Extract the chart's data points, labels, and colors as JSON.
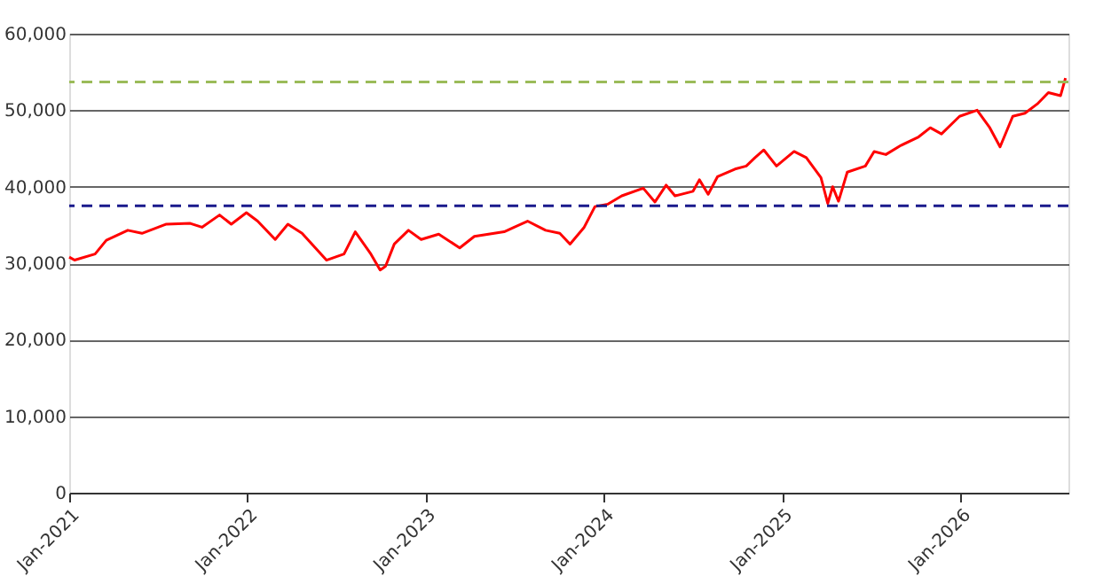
{
  "chart_data": {
    "type": "line",
    "x": [
      "2021-01-01",
      "2021-01-12",
      "2021-02-23",
      "2021-03-18",
      "2021-05-01",
      "2021-05-30",
      "2021-07-19",
      "2021-09-06",
      "2021-09-30",
      "2021-11-05",
      "2021-11-29",
      "2021-12-30",
      "2022-01-22",
      "2022-02-27",
      "2022-03-25",
      "2022-04-23",
      "2022-06-12",
      "2022-07-18",
      "2022-08-10",
      "2022-09-11",
      "2022-09-30",
      "2022-10-11",
      "2022-10-29",
      "2022-11-27",
      "2022-12-23",
      "2023-01-28",
      "2023-03-12",
      "2023-04-11",
      "2023-06-11",
      "2023-07-29",
      "2023-09-04",
      "2023-10-03",
      "2023-10-24",
      "2023-11-22",
      "2023-12-14",
      "2024-01-09",
      "2024-02-07",
      "2024-03-22",
      "2024-04-15",
      "2024-05-08",
      "2024-05-26",
      "2024-07-02",
      "2024-07-15",
      "2024-08-02",
      "2024-08-21",
      "2024-09-26",
      "2024-10-19",
      "2024-11-06",
      "2024-11-24",
      "2024-12-20",
      "2025-01-25",
      "2025-02-19",
      "2025-03-21",
      "2025-04-04",
      "2025-04-14",
      "2025-04-26",
      "2025-05-14",
      "2025-06-20",
      "2025-07-08",
      "2025-08-01",
      "2025-09-01",
      "2025-10-07",
      "2025-10-31",
      "2025-11-23",
      "2025-12-30",
      "2026-02-04",
      "2026-03-02",
      "2026-03-23",
      "2026-04-18",
      "2026-05-13",
      "2026-06-07",
      "2026-06-30",
      "2026-07-25",
      "2026-08-04"
    ],
    "series": [
      {
        "color": "#ff0000",
        "values": [
          30800,
          30400,
          31200,
          33000,
          34300,
          33900,
          35100,
          35200,
          34700,
          36300,
          35100,
          36600,
          35500,
          33100,
          35100,
          33900,
          30400,
          31200,
          34100,
          31200,
          29100,
          29600,
          32500,
          34300,
          33100,
          33800,
          32000,
          33500,
          34100,
          35500,
          34300,
          33900,
          32500,
          34700,
          37400,
          37700,
          38800,
          39800,
          38000,
          40200,
          38800,
          39400,
          40900,
          39000,
          41300,
          42300,
          42700,
          43800,
          44800,
          42700,
          44600,
          43800,
          41200,
          37800,
          40000,
          38100,
          41900,
          42700,
          44600,
          44200,
          45400,
          46500,
          47700,
          46900,
          49200,
          50000,
          47700,
          45200,
          49200,
          49600,
          50800,
          52300,
          51900,
          54200
        ]
      }
    ],
    "xlim": [
      "2021-01-01",
      "2026-08-10"
    ],
    "xticks": [
      {
        "value": "2021-01-01",
        "label": "Jan-2021"
      },
      {
        "value": "2022-01-01",
        "label": "Jan-2022"
      },
      {
        "value": "2023-01-01",
        "label": "Jan-2023"
      },
      {
        "value": "2024-01-01",
        "label": "Jan-2024"
      },
      {
        "value": "2025-01-01",
        "label": "Jan-2025"
      },
      {
        "value": "2026-01-01",
        "label": "Jan-2026"
      }
    ],
    "ylim": [
      0,
      60000
    ],
    "yticks": [
      0,
      {
        "value": 10000,
        "label": "10,000"
      },
      {
        "value": 20000,
        "label": "20,000"
      },
      {
        "value": 30000,
        "label": "30,000"
      },
      {
        "value": 40000,
        "label": "40,000"
      },
      {
        "value": 50000,
        "label": "50,000"
      },
      {
        "value": 60000,
        "label": "60,000"
      }
    ],
    "ref_lines": [
      {
        "axis": "y",
        "value": 37500,
        "color": "#1a1a8c",
        "line_style": "dashed"
      },
      {
        "axis": "y",
        "value": 53700,
        "color": "#9bbb59",
        "line_style": "dashed"
      }
    ],
    "grid": "y",
    "line_style": "solid",
    "marker": "none"
  }
}
